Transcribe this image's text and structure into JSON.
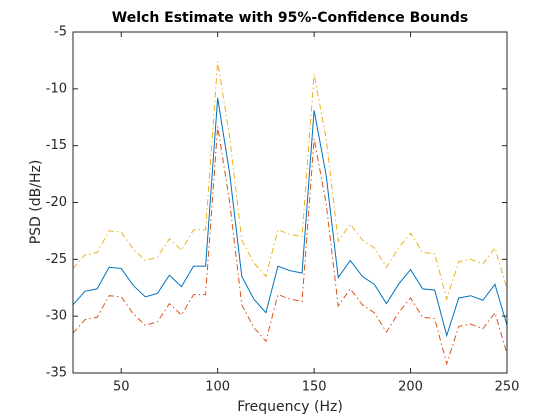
{
  "chart_data": {
    "type": "line",
    "title": "Welch Estimate with 95%-Confidence Bounds",
    "xlabel": "Frequency (Hz)",
    "ylabel": "PSD (dB/Hz)",
    "x": [
      25,
      31.25,
      37.5,
      43.75,
      50,
      56.25,
      62.5,
      68.75,
      75,
      81.25,
      87.5,
      93.75,
      100,
      106.25,
      112.5,
      118.75,
      125,
      131.25,
      137.5,
      143.75,
      150,
      156.25,
      162.5,
      168.75,
      175,
      181.25,
      187.5,
      193.75,
      200,
      206.25,
      212.5,
      218.75,
      225,
      231.25,
      237.5,
      243.75,
      250
    ],
    "series": [
      {
        "color": "#0072bd",
        "dash": "solid",
        "values": [
          -29.0,
          -27.8,
          -27.6,
          -25.7,
          -25.8,
          -27.3,
          -28.3,
          -28.0,
          -26.4,
          -27.4,
          -25.6,
          -25.6,
          -10.8,
          -17.5,
          -26.5,
          -28.5,
          -29.7,
          -25.6,
          -26.0,
          -26.2,
          -11.9,
          -17.6,
          -26.6,
          -25.1,
          -26.5,
          -27.2,
          -28.9,
          -27.2,
          -25.9,
          -27.6,
          -27.7,
          -31.7,
          -28.4,
          -28.2,
          -28.6,
          -27.2,
          -30.8
        ]
      },
      {
        "color": "#d95319",
        "dash": "dashdot",
        "values": [
          -31.5,
          -30.3,
          -30.1,
          -28.2,
          -28.3,
          -29.8,
          -30.8,
          -30.5,
          -28.9,
          -29.9,
          -28.1,
          -28.1,
          -13.3,
          -20.0,
          -29.0,
          -31.0,
          -32.2,
          -28.1,
          -28.5,
          -28.7,
          -14.4,
          -20.1,
          -29.1,
          -27.6,
          -29.0,
          -29.7,
          -31.4,
          -29.7,
          -28.4,
          -30.1,
          -30.2,
          -34.2,
          -30.9,
          -30.7,
          -31.1,
          -29.7,
          -33.3
        ]
      },
      {
        "color": "#edb120",
        "dash": "dashdot",
        "values": [
          -25.8,
          -24.6,
          -24.4,
          -22.5,
          -22.6,
          -24.1,
          -25.1,
          -24.8,
          -23.2,
          -24.2,
          -22.4,
          -22.4,
          -7.6,
          -14.3,
          -23.3,
          -25.3,
          -26.5,
          -22.4,
          -22.8,
          -23.0,
          -8.7,
          -14.4,
          -23.4,
          -21.9,
          -23.3,
          -24.0,
          -25.7,
          -24.0,
          -22.7,
          -24.4,
          -24.5,
          -28.5,
          -25.2,
          -25.0,
          -25.4,
          -24.0,
          -27.6
        ]
      }
    ],
    "xlim": [
      25,
      250
    ],
    "xticks": [
      50,
      100,
      150,
      200,
      250
    ],
    "ylim": [
      -35,
      -5
    ],
    "yticks": [
      -35,
      -30,
      -25,
      -20,
      -15,
      -10,
      -5
    ],
    "grid": false
  }
}
